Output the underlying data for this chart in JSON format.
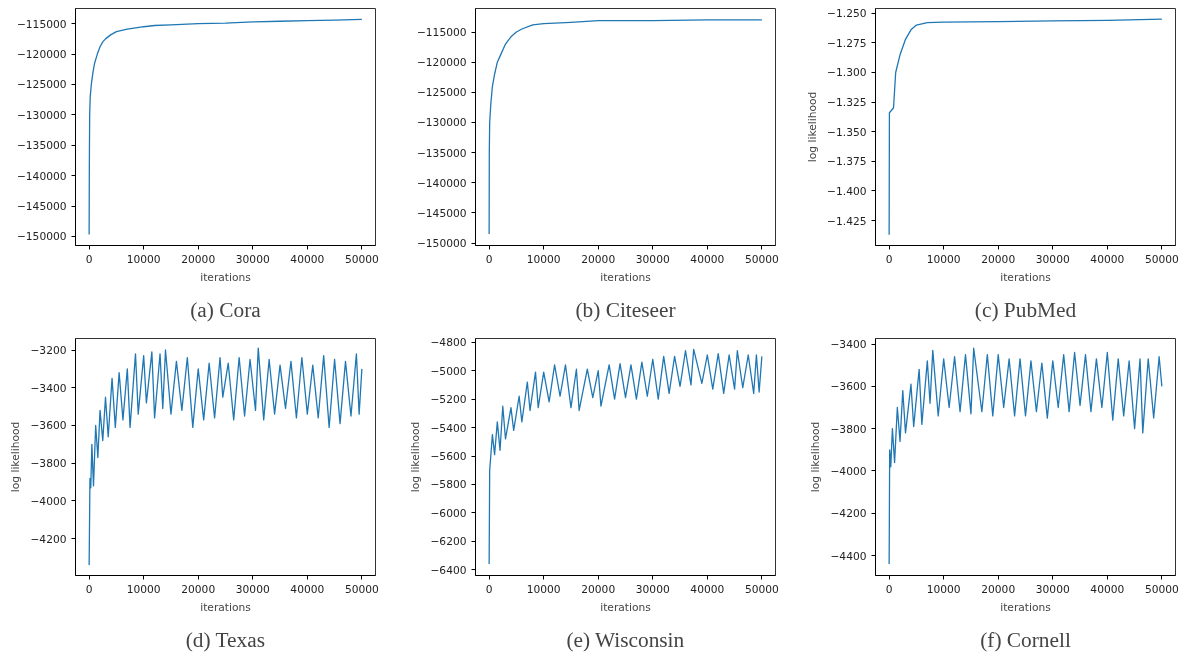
{
  "chart_data": [
    {
      "type": "line",
      "title": "(a) Cora",
      "xlabel": "iterations",
      "grid": false,
      "xlim": [
        -2500,
        52500
      ],
      "ylim": [
        -151500,
        -112500
      ],
      "xticks": [
        0,
        10000,
        20000,
        30000,
        40000,
        50000
      ],
      "yticks": [
        {
          "value": -150000,
          "label": "−150000"
        },
        {
          "value": -145000,
          "label": "−145000"
        },
        {
          "value": -140000,
          "label": "−140000"
        },
        {
          "value": -135000,
          "label": "−135000"
        },
        {
          "value": -130000,
          "label": "−130000"
        },
        {
          "value": -125000,
          "label": "−125000"
        },
        {
          "value": -120000,
          "label": "−120000"
        },
        {
          "value": -115000,
          "label": "−115000"
        }
      ],
      "series": [
        {
          "color": "#1f77b4",
          "x": [
            0,
            30,
            60,
            100,
            200,
            400,
            700,
            1000,
            1500,
            2000,
            2500,
            3000,
            4000,
            5000,
            7000,
            10000,
            12000,
            15000,
            20000,
            25000,
            30000,
            35000,
            40000,
            45000,
            50000
          ],
          "values": [
            -149700,
            -140000,
            -135000,
            -130000,
            -127000,
            -125000,
            -123000,
            -121500,
            -120000,
            -118800,
            -118000,
            -117500,
            -116800,
            -116300,
            -115900,
            -115500,
            -115300,
            -115200,
            -115000,
            -114900,
            -114700,
            -114600,
            -114500,
            -114400,
            -114300
          ]
        }
      ]
    },
    {
      "type": "line",
      "title": "(b) Citeseer",
      "xlabel": "iterations",
      "grid": false,
      "xlim": [
        -2500,
        52500
      ],
      "ylim": [
        -150400,
        -111100
      ],
      "xticks": [
        0,
        10000,
        20000,
        30000,
        40000,
        50000
      ],
      "yticks": [
        {
          "value": -150000,
          "label": "−150000"
        },
        {
          "value": -145000,
          "label": "−145000"
        },
        {
          "value": -140000,
          "label": "−140000"
        },
        {
          "value": -135000,
          "label": "−135000"
        },
        {
          "value": -130000,
          "label": "−130000"
        },
        {
          "value": -125000,
          "label": "−125000"
        },
        {
          "value": -120000,
          "label": "−120000"
        },
        {
          "value": -115000,
          "label": "−115000"
        }
      ],
      "series": [
        {
          "color": "#1f77b4",
          "x": [
            0,
            30,
            100,
            300,
            600,
            1000,
            1500,
            2000,
            3000,
            4000,
            5000,
            6000,
            8000,
            10000,
            15000,
            20000,
            30000,
            40000,
            50000
          ],
          "values": [
            -148500,
            -135000,
            -130000,
            -127000,
            -124000,
            -122000,
            -120000,
            -119000,
            -117000,
            -115800,
            -115000,
            -114500,
            -113800,
            -113600,
            -113400,
            -113100,
            -113100,
            -113000,
            -113000
          ]
        }
      ]
    },
    {
      "type": "line",
      "title": "(c) PubMed",
      "xlabel": "iterations",
      "ylabel": "log likelihood",
      "grid": false,
      "xlim": [
        -2500,
        52500
      ],
      "ylim": [
        -1.446,
        -1.246
      ],
      "xticks": [
        0,
        10000,
        20000,
        30000,
        40000,
        50000
      ],
      "yticks": [
        {
          "value": -1.425,
          "label": "−1.425"
        },
        {
          "value": -1.4,
          "label": "−1.400"
        },
        {
          "value": -1.375,
          "label": "−1.375"
        },
        {
          "value": -1.35,
          "label": "−1.350"
        },
        {
          "value": -1.325,
          "label": "−1.325"
        },
        {
          "value": -1.3,
          "label": "−1.300"
        },
        {
          "value": -1.275,
          "label": "−1.275"
        },
        {
          "value": -1.25,
          "label": "−1.250"
        }
      ],
      "series": [
        {
          "color": "#1f77b4",
          "x": [
            0,
            50,
            800,
            1000,
            1200,
            2000,
            3000,
            4000,
            5000,
            7000,
            10000,
            20000,
            30000,
            40000,
            50000
          ],
          "values": [
            -1.437,
            -1.334,
            -1.33,
            -1.315,
            -1.3,
            -1.285,
            -1.272,
            -1.264,
            -1.26,
            -1.258,
            -1.2575,
            -1.257,
            -1.2565,
            -1.256,
            -1.255
          ]
        }
      ]
    },
    {
      "type": "line",
      "title": "(d) Texas",
      "xlabel": "iterations",
      "ylabel": "log likelihood",
      "grid": false,
      "xlim": [
        -2500,
        52500
      ],
      "ylim": [
        -4395,
        -3139
      ],
      "xticks": [
        0,
        10000,
        20000,
        30000,
        40000,
        50000
      ],
      "yticks": [
        {
          "value": -4200,
          "label": "−4200"
        },
        {
          "value": -4000,
          "label": "−4000"
        },
        {
          "value": -3800,
          "label": "−3800"
        },
        {
          "value": -3600,
          "label": "−3600"
        },
        {
          "value": -3400,
          "label": "−3400"
        },
        {
          "value": -3200,
          "label": "−3200"
        }
      ],
      "series": [
        {
          "color": "#1f77b4",
          "x": [
            0,
            150,
            300,
            500,
            800,
            1200,
            1600,
            2000,
            2500,
            3000,
            3500,
            4200,
            4800,
            5500,
            6200,
            7000,
            7500,
            8500,
            9000,
            10000,
            10500,
            11500,
            12000,
            13000,
            13500,
            14000,
            15000,
            16000,
            17000,
            18000,
            19000,
            20000,
            21000,
            22000,
            23000,
            24000,
            24500,
            25500,
            26500,
            27500,
            28500,
            29500,
            30500,
            31000,
            32000,
            33000,
            34000,
            35000,
            36000,
            37000,
            38000,
            39000,
            40000,
            41000,
            42000,
            43000,
            44000,
            45000,
            46000,
            47000,
            48000,
            49000,
            49500,
            50000
          ],
          "values": [
            -4340,
            -3880,
            -3930,
            -3700,
            -3920,
            -3600,
            -3770,
            -3520,
            -3680,
            -3450,
            -3660,
            -3350,
            -3610,
            -3320,
            -3570,
            -3300,
            -3610,
            -3220,
            -3540,
            -3230,
            -3480,
            -3210,
            -3560,
            -3220,
            -3510,
            -3200,
            -3540,
            -3260,
            -3520,
            -3240,
            -3610,
            -3300,
            -3570,
            -3270,
            -3560,
            -3240,
            -3450,
            -3270,
            -3570,
            -3240,
            -3550,
            -3250,
            -3520,
            -3190,
            -3570,
            -3250,
            -3540,
            -3280,
            -3510,
            -3260,
            -3560,
            -3240,
            -3540,
            -3280,
            -3560,
            -3230,
            -3610,
            -3250,
            -3590,
            -3260,
            -3550,
            -3220,
            -3540,
            -3300
          ]
        }
      ]
    },
    {
      "type": "line",
      "title": "(e) Wisconsin",
      "xlabel": "iterations",
      "ylabel": "log likelihood",
      "grid": false,
      "xlim": [
        -2500,
        52500
      ],
      "ylim": [
        -6440,
        -4774
      ],
      "xticks": [
        0,
        10000,
        20000,
        30000,
        40000,
        50000
      ],
      "yticks": [
        {
          "value": -6400,
          "label": "−6400"
        },
        {
          "value": -6200,
          "label": "−6200"
        },
        {
          "value": -6000,
          "label": "−6000"
        },
        {
          "value": -5800,
          "label": "−5800"
        },
        {
          "value": -5600,
          "label": "−5600"
        },
        {
          "value": -5400,
          "label": "−5400"
        },
        {
          "value": -5200,
          "label": "−5200"
        },
        {
          "value": -5000,
          "label": "−5000"
        },
        {
          "value": -4800,
          "label": "−4800"
        }
      ],
      "series": [
        {
          "color": "#1f77b4",
          "x": [
            0,
            100,
            300,
            600,
            1000,
            1500,
            2000,
            2500,
            3000,
            4000,
            4500,
            5500,
            6000,
            7000,
            7500,
            8500,
            9000,
            10000,
            11000,
            12000,
            13000,
            14000,
            15000,
            16000,
            16500,
            18000,
            19000,
            20000,
            20500,
            22000,
            23000,
            24000,
            25000,
            26000,
            27000,
            28000,
            29000,
            30000,
            31000,
            32000,
            33000,
            34000,
            35000,
            36000,
            37000,
            37500,
            39000,
            40000,
            41000,
            42000,
            43000,
            44000,
            45000,
            45500,
            46500,
            47500,
            48500,
            49000,
            49500,
            50000
          ],
          "values": [
            -6360,
            -5700,
            -5600,
            -5450,
            -5590,
            -5360,
            -5560,
            -5250,
            -5480,
            -5260,
            -5420,
            -5180,
            -5360,
            -5080,
            -5280,
            -5010,
            -5260,
            -5010,
            -5220,
            -4960,
            -5180,
            -4960,
            -5260,
            -4990,
            -5280,
            -4990,
            -5190,
            -5000,
            -5250,
            -4960,
            -5200,
            -4950,
            -5190,
            -4960,
            -5200,
            -4940,
            -5180,
            -4920,
            -5200,
            -4900,
            -5160,
            -4900,
            -5110,
            -4860,
            -5100,
            -4850,
            -5090,
            -4890,
            -5130,
            -4880,
            -5160,
            -4890,
            -5130,
            -4860,
            -5120,
            -4890,
            -5160,
            -4890,
            -5150,
            -4900
          ]
        }
      ]
    },
    {
      "type": "line",
      "title": "(f) Cornell",
      "xlabel": "iterations",
      "ylabel": "log likelihood",
      "grid": false,
      "xlim": [
        -2500,
        52500
      ],
      "ylim": [
        -4494,
        -3374
      ],
      "xticks": [
        0,
        10000,
        20000,
        30000,
        40000,
        50000
      ],
      "yticks": [
        {
          "value": -4400,
          "label": "−4400"
        },
        {
          "value": -4200,
          "label": "−4200"
        },
        {
          "value": -4000,
          "label": "−4000"
        },
        {
          "value": -3800,
          "label": "−3800"
        },
        {
          "value": -3600,
          "label": "−3600"
        },
        {
          "value": -3400,
          "label": "−3400"
        }
      ],
      "series": [
        {
          "color": "#1f77b4",
          "x": [
            0,
            100,
            300,
            600,
            1000,
            1500,
            2000,
            2500,
            3000,
            4000,
            4500,
            5500,
            6000,
            7000,
            7500,
            8000,
            9000,
            10000,
            11000,
            12000,
            13000,
            14000,
            15000,
            15500,
            17000,
            18000,
            19000,
            20000,
            21000,
            22000,
            23000,
            24000,
            25000,
            26000,
            27000,
            28000,
            29000,
            30000,
            31000,
            32000,
            33000,
            34000,
            35000,
            36000,
            37000,
            38000,
            39000,
            40000,
            41000,
            42000,
            43000,
            44000,
            45000,
            46000,
            46500,
            47500,
            48500,
            49500,
            50000
          ],
          "values": [
            -4440,
            -3900,
            -3980,
            -3800,
            -3960,
            -3700,
            -3860,
            -3620,
            -3820,
            -3590,
            -3790,
            -3520,
            -3780,
            -3480,
            -3680,
            -3430,
            -3740,
            -3470,
            -3700,
            -3460,
            -3720,
            -3450,
            -3730,
            -3420,
            -3720,
            -3450,
            -3740,
            -3450,
            -3700,
            -3470,
            -3740,
            -3470,
            -3740,
            -3480,
            -3720,
            -3490,
            -3750,
            -3480,
            -3700,
            -3450,
            -3720,
            -3440,
            -3690,
            -3450,
            -3720,
            -3470,
            -3700,
            -3440,
            -3760,
            -3470,
            -3740,
            -3480,
            -3800,
            -3470,
            -3820,
            -3470,
            -3750,
            -3460,
            -3600
          ]
        }
      ]
    }
  ]
}
